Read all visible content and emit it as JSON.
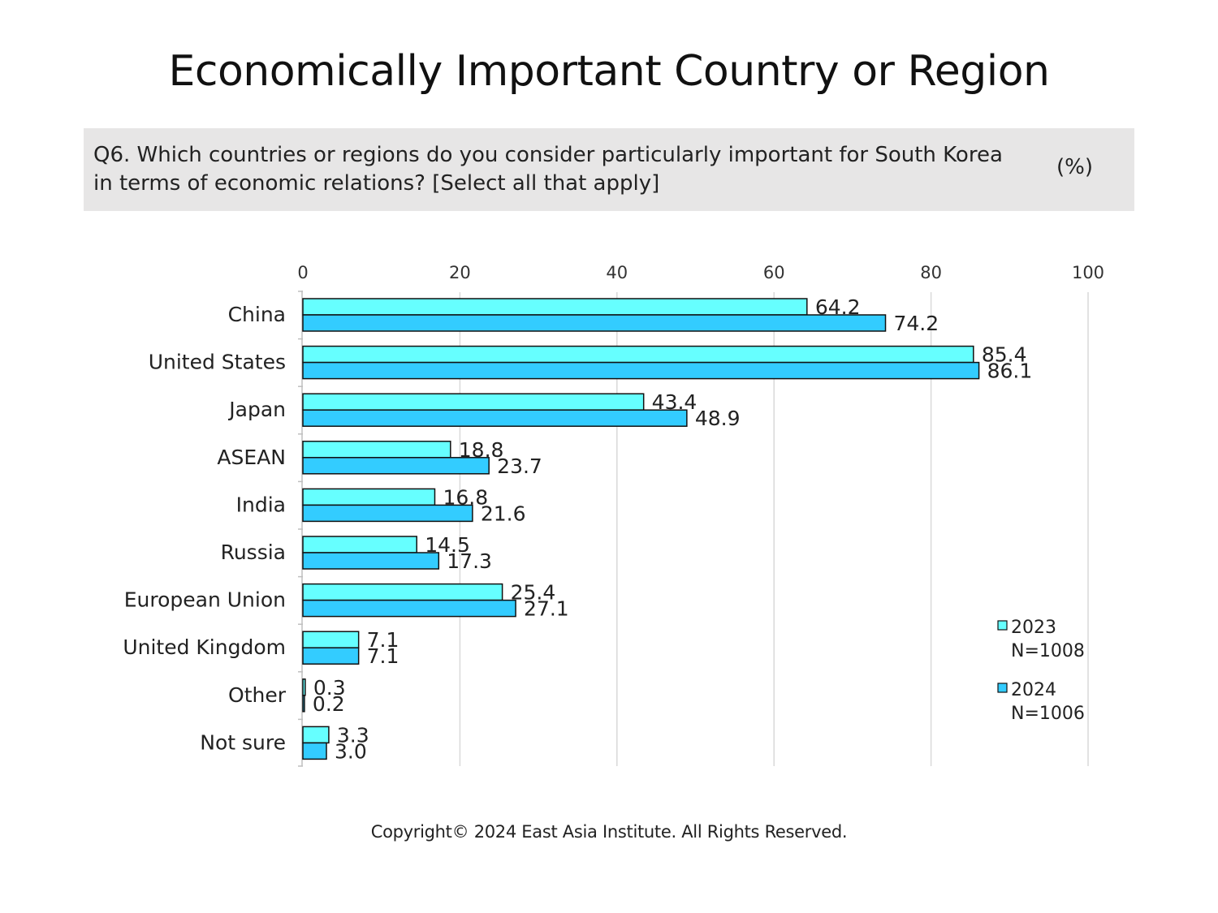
{
  "title": "Economically Important Country or Region",
  "question": {
    "text": "Q6. Which countries or regions do you consider particularly important for South Korea in terms of economic relations? [Select all that apply]",
    "unit": "(%)"
  },
  "footer": "Copyright© 2024 East Asia Institute. All Rights Reserved.",
  "chart_data": {
    "type": "bar",
    "orientation": "horizontal",
    "categories": [
      "China",
      "United States",
      "Japan",
      "ASEAN",
      "India",
      "Russia",
      "European Union",
      "United Kingdom",
      "Other",
      "Not sure"
    ],
    "series": [
      {
        "name": "2023",
        "note": "N=1008",
        "color": "#66ffff",
        "values": [
          64.2,
          85.4,
          43.4,
          18.8,
          16.8,
          14.5,
          25.4,
          7.1,
          0.3,
          3.3
        ]
      },
      {
        "name": "2024",
        "note": "N=1006",
        "color": "#33ccff",
        "values": [
          74.2,
          86.1,
          48.9,
          23.7,
          21.6,
          17.3,
          27.1,
          7.1,
          0.2,
          3.0
        ]
      }
    ],
    "xlim": [
      0,
      100
    ],
    "xticks": [
      0,
      20,
      40,
      60,
      80,
      100
    ],
    "x_axis_position": "top",
    "grid": true,
    "legend_position": "bottom-right",
    "data_labels": true
  }
}
